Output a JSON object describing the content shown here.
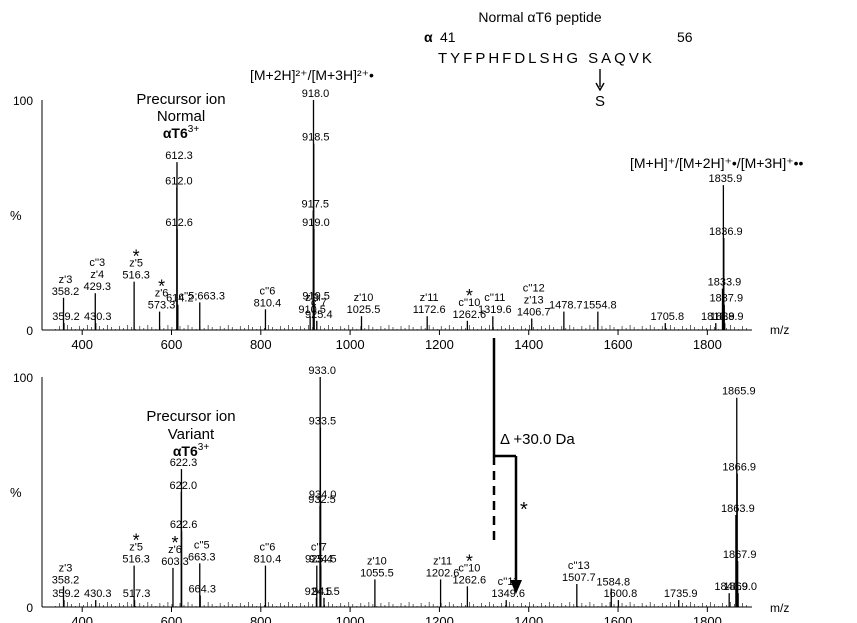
{
  "peptide": {
    "title": "Normal αT6 peptide",
    "alpha": "α",
    "start": "41",
    "end": "56",
    "sequence": "TYFPHFDLSHG SAQVK",
    "substitution": "S"
  },
  "notes": {
    "delta": "Δ +30.0 Da",
    "star": "*"
  },
  "colors": {
    "ink": "#000000",
    "background": "#ffffff"
  },
  "chart_data": [
    {
      "type": "bar",
      "xlabel": "m/z",
      "ylabel": "%",
      "xlim": [
        310,
        1900
      ],
      "ylim": [
        0,
        100
      ],
      "y_ticks": [
        "0",
        "100"
      ],
      "x_ticks": [
        400,
        600,
        800,
        1000,
        1200,
        1400,
        1600,
        1800
      ],
      "annotations": [
        {
          "text": "Precursor ion"
        },
        {
          "text": "Normal"
        },
        {
          "text": "αT6",
          "sup": "3+"
        },
        {
          "text": "[M+2H]²⁺/[M+3H]²⁺•"
        },
        {
          "text": "[M+H]⁺/[M+2H]⁺•/[M+3H]⁺••"
        }
      ],
      "peaks": [
        {
          "mz": 358.2,
          "rel": 14,
          "labels": [
            "z'3",
            "358.2"
          ]
        },
        {
          "mz": 359.2,
          "rel": 3,
          "labels": [
            "359.2"
          ]
        },
        {
          "mz": 429.3,
          "rel": 16,
          "labels": [
            "c''3",
            "z'4",
            "429.3"
          ]
        },
        {
          "mz": 430.3,
          "rel": 3,
          "labels": [
            "430.3"
          ]
        },
        {
          "mz": 516.3,
          "rel": 21,
          "labels": [
            "z'5",
            "516.3"
          ],
          "star": true
        },
        {
          "mz": 573.3,
          "rel": 8,
          "labels": [
            "z'6",
            "573.3"
          ],
          "star": true
        },
        {
          "mz": 612.0,
          "rel": 62,
          "labels": [
            "612.0"
          ]
        },
        {
          "mz": 612.3,
          "rel": 73,
          "labels": [
            "612.3"
          ]
        },
        {
          "mz": 612.6,
          "rel": 44,
          "labels": [
            "612.6"
          ]
        },
        {
          "mz": 614.2,
          "rel": 11,
          "labels": [
            "614.2"
          ]
        },
        {
          "mz": 663.3,
          "rel": 12,
          "labels": [
            "c''5;663.3"
          ]
        },
        {
          "mz": 810.4,
          "rel": 9,
          "labels": [
            "c''6",
            "810.4"
          ]
        },
        {
          "mz": 910.5,
          "rel": 6,
          "labels": [
            "z'9",
            "910.5"
          ]
        },
        {
          "mz": 917.5,
          "rel": 52,
          "labels": [
            "917.5"
          ]
        },
        {
          "mz": 918.0,
          "rel": 100,
          "labels": [
            "918.0"
          ]
        },
        {
          "mz": 918.5,
          "rel": 81,
          "labels": [
            "918.5"
          ]
        },
        {
          "mz": 919.0,
          "rel": 44,
          "labels": [
            "919.0"
          ]
        },
        {
          "mz": 919.5,
          "rel": 12,
          "labels": [
            "919.5"
          ]
        },
        {
          "mz": 925.4,
          "rel": 4,
          "labels": [
            "c''7",
            "925.4"
          ]
        },
        {
          "mz": 1025.5,
          "rel": 6,
          "labels": [
            "z'10",
            "1025.5"
          ]
        },
        {
          "mz": 1172.6,
          "rel": 6,
          "labels": [
            "z'11",
            "1172.6"
          ]
        },
        {
          "mz": 1262.6,
          "rel": 4,
          "labels": [
            "c''10",
            "1262.6"
          ],
          "star": true
        },
        {
          "mz": 1319.6,
          "rel": 6,
          "labels": [
            "c''11",
            "1319.6"
          ]
        },
        {
          "mz": 1406.7,
          "rel": 5,
          "labels": [
            "c''12",
            "z'13",
            "1406.7"
          ]
        },
        {
          "mz": 1478.7,
          "rel": 8,
          "labels": [
            "1478.7"
          ]
        },
        {
          "mz": 1554.8,
          "rel": 8,
          "labels": [
            "1554.8"
          ]
        },
        {
          "mz": 1705.8,
          "rel": 3,
          "labels": [
            "1705.8"
          ]
        },
        {
          "mz": 1818.9,
          "rel": 3,
          "labels": [
            "1818.9"
          ]
        },
        {
          "mz": 1833.9,
          "rel": 18,
          "labels": [
            "1833.9"
          ]
        },
        {
          "mz": 1835.9,
          "rel": 63,
          "labels": [
            "1835.9"
          ]
        },
        {
          "mz": 1836.9,
          "rel": 40,
          "labels": [
            "1836.9"
          ]
        },
        {
          "mz": 1837.9,
          "rel": 11,
          "labels": [
            "1837.9"
          ]
        },
        {
          "mz": 1838.9,
          "rel": 3,
          "labels": [
            "1838.9"
          ]
        }
      ]
    },
    {
      "type": "bar",
      "xlabel": "m/z",
      "ylabel": "%",
      "xlim": [
        310,
        1900
      ],
      "ylim": [
        0,
        100
      ],
      "y_ticks": [
        "0",
        "100"
      ],
      "x_ticks": [
        400,
        600,
        800,
        1000,
        1200,
        1400,
        1600,
        1800
      ],
      "annotations": [
        {
          "text": "Precursor ion"
        },
        {
          "text": "Variant"
        },
        {
          "text": "αT6",
          "sup": "3+"
        }
      ],
      "peaks": [
        {
          "mz": 358.2,
          "rel": 9,
          "labels": [
            "z'3",
            "358.2"
          ]
        },
        {
          "mz": 359.2,
          "rel": 3,
          "labels": [
            "359.2"
          ]
        },
        {
          "mz": 430.3,
          "rel": 3,
          "labels": [
            "430.3"
          ]
        },
        {
          "mz": 516.3,
          "rel": 18,
          "labels": [
            "z'5",
            "516.3"
          ],
          "star": true
        },
        {
          "mz": 517.3,
          "rel": 3,
          "labels": [
            "517.3"
          ]
        },
        {
          "mz": 603.3,
          "rel": 17,
          "labels": [
            "z'6",
            "603.3"
          ],
          "star": true
        },
        {
          "mz": 622.0,
          "rel": 50,
          "labels": [
            "622.0"
          ]
        },
        {
          "mz": 622.3,
          "rel": 60,
          "labels": [
            "622.3"
          ]
        },
        {
          "mz": 622.6,
          "rel": 33,
          "labels": [
            "622.6"
          ]
        },
        {
          "mz": 663.3,
          "rel": 19,
          "labels": [
            "c''5",
            "663.3"
          ]
        },
        {
          "mz": 664.3,
          "rel": 5,
          "labels": [
            "664.3"
          ]
        },
        {
          "mz": 810.4,
          "rel": 18,
          "labels": [
            "c''6",
            "810.4"
          ]
        },
        {
          "mz": 924.5,
          "rel": 4,
          "labels": [
            "924.5"
          ]
        },
        {
          "mz": 925.4,
          "rel": 18,
          "labels": [
            "c''7",
            "925.4"
          ]
        },
        {
          "mz": 932.5,
          "rel": 44,
          "labels": [
            "932.5"
          ]
        },
        {
          "mz": 933.0,
          "rel": 100,
          "labels": [
            "933.0"
          ]
        },
        {
          "mz": 933.5,
          "rel": 78,
          "labels": [
            "933.5"
          ]
        },
        {
          "mz": 934.0,
          "rel": 46,
          "labels": [
            "934.0"
          ]
        },
        {
          "mz": 934.5,
          "rel": 18,
          "labels": [
            "934.5"
          ]
        },
        {
          "mz": 941.5,
          "rel": 4,
          "labels": [
            "941.5"
          ]
        },
        {
          "mz": 1055.5,
          "rel": 12,
          "labels": [
            "z'10",
            "1055.5"
          ]
        },
        {
          "mz": 1202.6,
          "rel": 12,
          "labels": [
            "z'11",
            "1202.6"
          ]
        },
        {
          "mz": 1262.6,
          "rel": 9,
          "labels": [
            "c''10",
            "1262.6"
          ],
          "star": true
        },
        {
          "mz": 1349.6,
          "rel": 3,
          "labels": [
            "c''11",
            "1349.6"
          ]
        },
        {
          "mz": 1507.7,
          "rel": 10,
          "labels": [
            "c''13",
            "1507.7"
          ]
        },
        {
          "mz": 1584.8,
          "rel": 8,
          "labels": [
            "1584.8"
          ]
        },
        {
          "mz": 1600.8,
          "rel": 3,
          "labels": [
            "1600.8"
          ]
        },
        {
          "mz": 1735.9,
          "rel": 3,
          "labels": [
            "1735.9"
          ]
        },
        {
          "mz": 1848.9,
          "rel": 6,
          "labels": [
            "1848.9"
          ]
        },
        {
          "mz": 1863.9,
          "rel": 40,
          "labels": [
            "1863.9"
          ]
        },
        {
          "mz": 1865.9,
          "rel": 91,
          "labels": [
            "1865.9"
          ]
        },
        {
          "mz": 1866.9,
          "rel": 58,
          "labels": [
            "1866.9"
          ]
        },
        {
          "mz": 1867.9,
          "rel": 20,
          "labels": [
            "1867.9"
          ]
        },
        {
          "mz": 1869.0,
          "rel": 6,
          "labels": [
            "1869.0"
          ]
        }
      ]
    }
  ]
}
